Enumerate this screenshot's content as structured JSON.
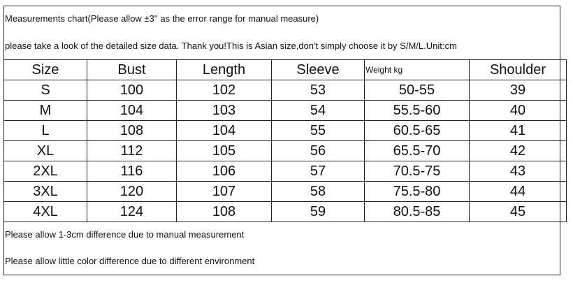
{
  "header": {
    "notes": [
      "Measurements chart(Please allow ±3'' as the error range for manual measure)",
      "please take a look of the detailed size data. Thank you!This is Asian size,don't simply choose it by S/M/L.Unit:cm"
    ]
  },
  "table": {
    "columns": [
      "Size",
      "Bust",
      "Length",
      "Sleeve",
      "Weight kg",
      "Shoulder"
    ],
    "rows": [
      [
        "S",
        100,
        102,
        53,
        "50-55",
        39
      ],
      [
        "M",
        104,
        103,
        54,
        "55.5-60",
        40
      ],
      [
        "L",
        108,
        104,
        55,
        "60.5-65",
        41
      ],
      [
        "XL",
        112,
        105,
        56,
        "65.5-70",
        42
      ],
      [
        "2XL",
        116,
        106,
        57,
        "70.5-75",
        43
      ],
      [
        "3XL",
        120,
        107,
        58,
        "75.5-80",
        44
      ],
      [
        "4XL",
        124,
        108,
        59,
        "80.5-85",
        45
      ]
    ]
  },
  "footer": {
    "notes": [
      "Please allow 1-3cm difference due to manual measurement",
      "Please allow little color difference due to different environment"
    ]
  }
}
